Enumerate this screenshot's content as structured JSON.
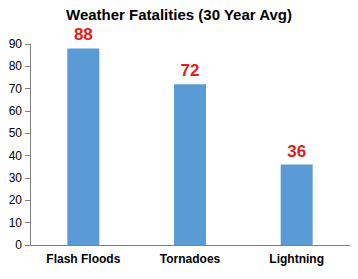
{
  "chart_data": {
    "type": "bar",
    "title": "Weather Fatalities (30 Year Avg)",
    "categories": [
      "Flash Floods",
      "Tornadoes",
      "Lightning"
    ],
    "values": [
      88,
      72,
      36
    ],
    "color": "#5b9bd5",
    "ylim": [
      0,
      90
    ],
    "yticks": [
      0,
      10,
      20,
      30,
      40,
      50,
      60,
      70,
      80,
      90
    ],
    "grid": false,
    "data_labels": true
  }
}
